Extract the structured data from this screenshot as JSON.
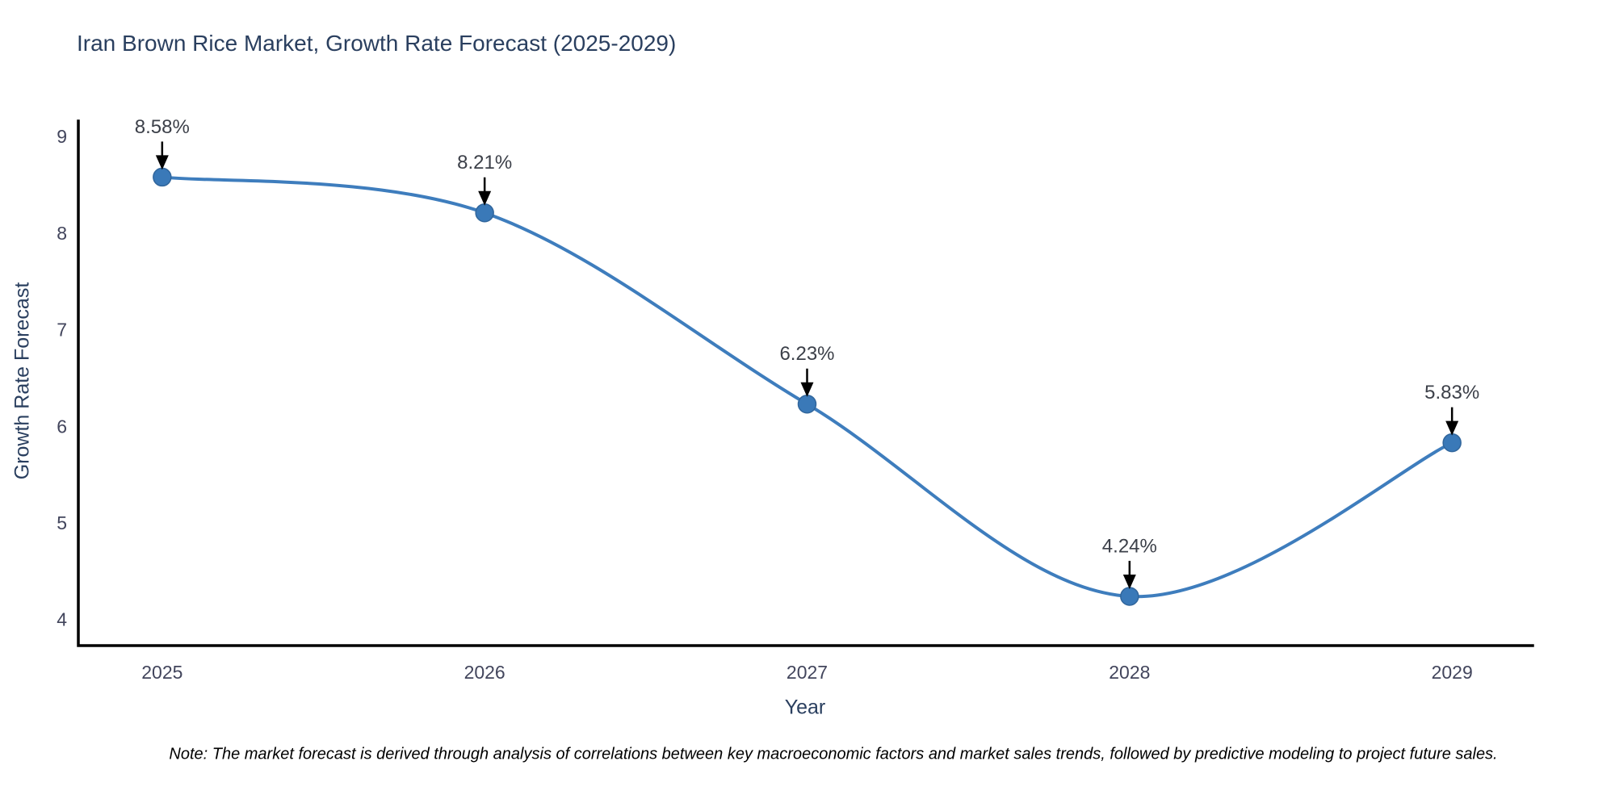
{
  "title": "Iran Brown Rice Market, Growth Rate Forecast (2025-2029)",
  "note": "Note: The market forecast is derived through analysis of correlations between key macroeconomic factors and market sales trends, followed by predictive modeling to project future sales.",
  "colors": {
    "line": "#3e7dbd",
    "marker_fill": "#3a79b8",
    "marker_edge": "#31669c",
    "axis_line": "#000000",
    "title_text": "#2a3f5f",
    "tick_text": "#42455c",
    "annotation_text": "#3c4049",
    "arrow": "#000000",
    "background": "#ffffff"
  },
  "chart_data": {
    "type": "line",
    "title": "Iran Brown Rice Market, Growth Rate Forecast (2025-2029)",
    "xlabel": "Year",
    "ylabel": "Growth Rate Forecast",
    "x": [
      2025,
      2026,
      2027,
      2028,
      2029
    ],
    "values": [
      8.58,
      8.21,
      6.23,
      4.24,
      5.83
    ],
    "series": [
      {
        "name": "Growth Rate Forecast",
        "values": [
          8.58,
          8.21,
          6.23,
          4.24,
          5.83
        ]
      }
    ],
    "point_labels": [
      "8.58%",
      "8.21%",
      "6.23%",
      "4.24%",
      "5.83%"
    ],
    "xticks": [
      "2025",
      "2026",
      "2027",
      "2028",
      "2029"
    ],
    "yticks": [
      "4",
      "5",
      "6",
      "7",
      "8",
      "9"
    ],
    "xlim": [
      2024.74,
      2029.25
    ],
    "ylim": [
      3.73,
      9.16
    ],
    "line_shape": "spline",
    "grid": false,
    "legend_position": "none"
  }
}
